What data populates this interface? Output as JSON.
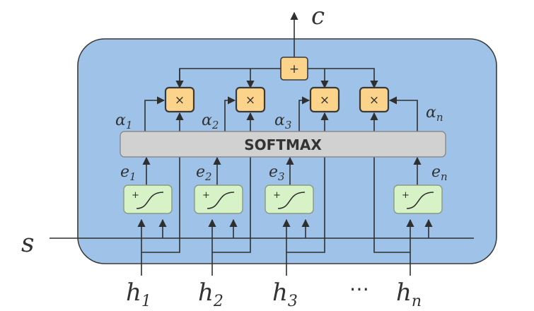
{
  "colors": {
    "container_fill": "#9fc3e8",
    "container_stroke": "#3a3a3a",
    "softmax_fill": "#d1d1d1",
    "sum_fill": "#fbd38a",
    "sum_stroke": "#3a3a3a",
    "score_fill": "#d8f2c8",
    "score_stroke": "#8a9a80",
    "line": "#2f2f2f"
  },
  "output": {
    "letter": "c"
  },
  "state": {
    "letter": "s"
  },
  "softmax": {
    "label": "SOFTMAX"
  },
  "sum_node": {
    "symbol": "+"
  },
  "multiply_symbol": "×",
  "score_plus": "+",
  "ellipsis": "⋯",
  "columns": [
    {
      "h_base": "h",
      "h_sub": "1",
      "e_base": "e",
      "e_sub": "1",
      "alpha_base": "α",
      "alpha_sub": "1"
    },
    {
      "h_base": "h",
      "h_sub": "2",
      "e_base": "e",
      "e_sub": "2",
      "alpha_base": "α",
      "alpha_sub": "2"
    },
    {
      "h_base": "h",
      "h_sub": "3",
      "e_base": "e",
      "e_sub": "3",
      "alpha_base": "α",
      "alpha_sub": "3"
    },
    {
      "h_base": "h",
      "h_sub": "n",
      "e_base": "e",
      "e_sub": "n",
      "alpha_base": "α",
      "alpha_sub": "n"
    }
  ]
}
